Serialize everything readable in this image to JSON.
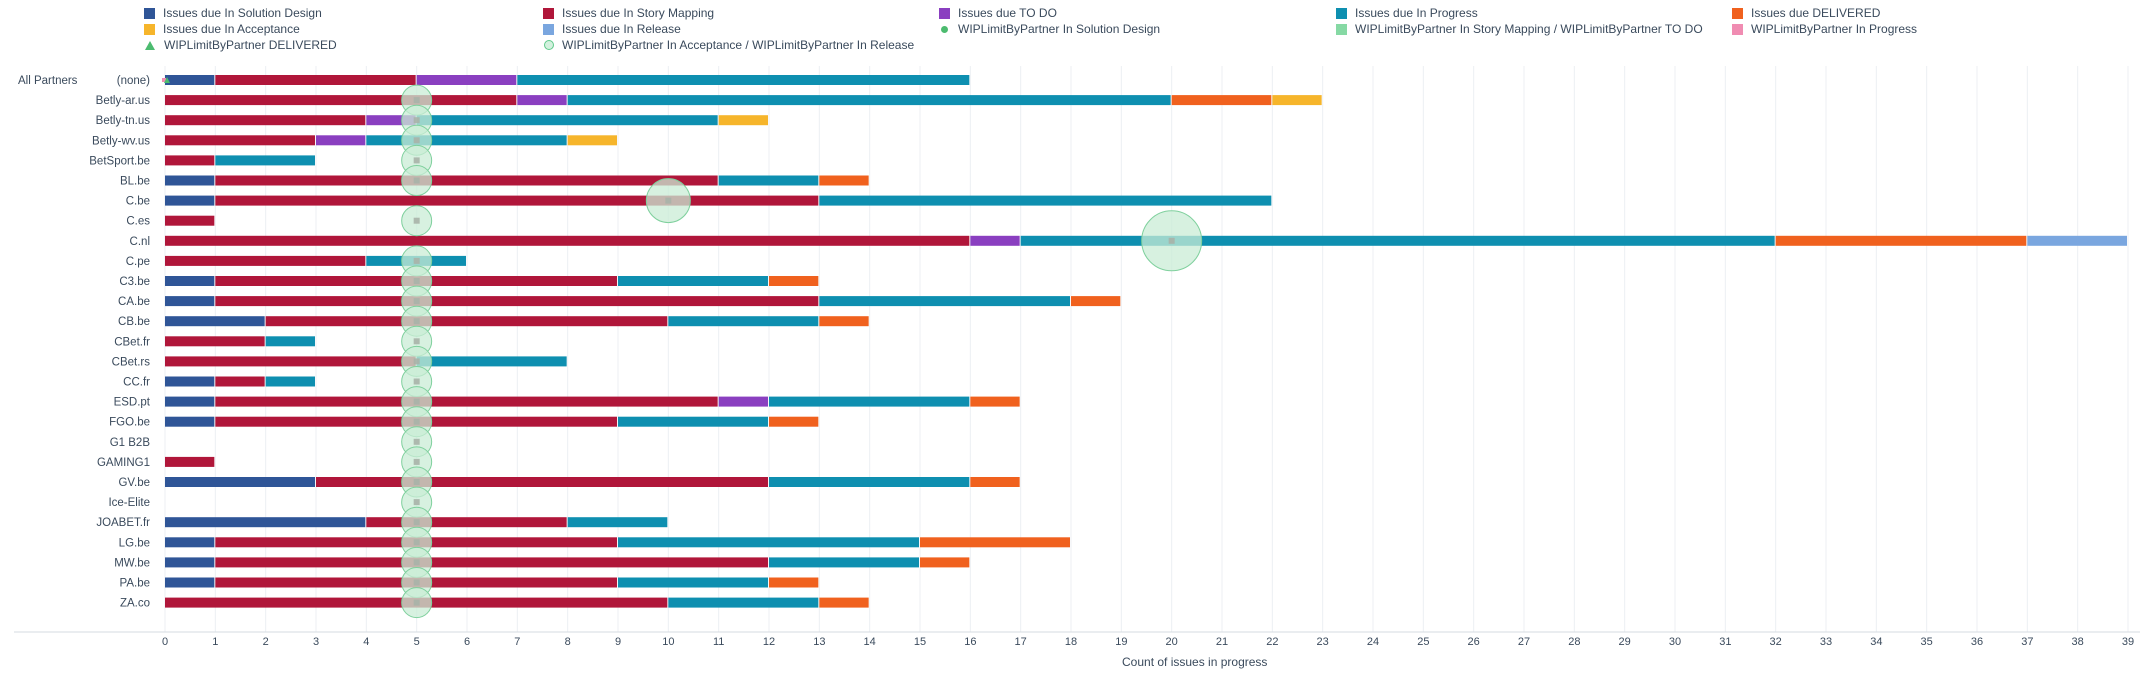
{
  "legend": [
    {
      "label": "Issues due In Solution Design",
      "color": "#2f5597",
      "shape": "square"
    },
    {
      "label": "Issues due In Story Mapping",
      "color": "#b0163a",
      "shape": "square"
    },
    {
      "label": "Issues due TO DO",
      "color": "#8a3fc0",
      "shape": "square"
    },
    {
      "label": "Issues due In Progress",
      "color": "#0e8fb0",
      "shape": "square"
    },
    {
      "label": "Issues due DELIVERED",
      "color": "#f0611e",
      "shape": "square"
    },
    {
      "label": "Issues due In Acceptance",
      "color": "#f6b52b",
      "shape": "square"
    },
    {
      "label": "Issues due In Release",
      "color": "#7aa6df",
      "shape": "square"
    },
    {
      "label": "WIPLimitByPartner In Solution Design",
      "color": "#4cbb6f",
      "shape": "dot"
    },
    {
      "label": "WIPLimitByPartner In Story Mapping / WIPLimitByPartner TO DO",
      "color": "#86d9a4",
      "shape": "square"
    },
    {
      "label": "WIPLimitByPartner In Progress",
      "color": "#f08cb2",
      "shape": "square"
    },
    {
      "label": "WIPLimitByPartner DELIVERED",
      "color": "#4cbb6f",
      "shape": "triangle"
    },
    {
      "label": "WIPLimitByPartner In Acceptance / WIPLimitByPartner In Release",
      "color": "#5fc98a",
      "shape": "ring"
    }
  ],
  "chart_data": {
    "type": "bar",
    "orientation": "horizontal",
    "stacked": true,
    "xlabel": "Count of issues in progress",
    "xlim": [
      0,
      39
    ],
    "x_ticks": [
      0,
      1,
      2,
      3,
      4,
      5,
      6,
      7,
      8,
      9,
      10,
      11,
      12,
      13,
      14,
      15,
      16,
      17,
      18,
      19,
      20,
      21,
      22,
      23,
      24,
      25,
      26,
      27,
      28,
      29,
      30,
      31,
      32,
      33,
      34,
      35,
      36,
      37,
      38,
      39
    ],
    "grid": true,
    "legend_position": "top",
    "group_label_left": "All Partners",
    "group_label_right": "(none)",
    "categories": [
      "(none)",
      "Betly-ar.us",
      "Betly-tn.us",
      "Betly-wv.us",
      "BetSport.be",
      "BL.be",
      "C.be",
      "C.es",
      "C.nl",
      "C.pe",
      "C3.be",
      "CA.be",
      "CB.be",
      "CBet.fr",
      "CBet.rs",
      "CC.fr",
      "ESD.pt",
      "FGO.be",
      "G1 B2B",
      "GAMING1",
      "GV.be",
      "Ice-Elite",
      "JOABET.fr",
      "LG.be",
      "MW.be",
      "PA.be",
      "ZA.co"
    ],
    "series": [
      {
        "name": "Issues due In Solution Design",
        "color": "#2f5597",
        "values": [
          1,
          0,
          0,
          0,
          0,
          1,
          1,
          0,
          0,
          0,
          1,
          1,
          2,
          0,
          0,
          1,
          1,
          1,
          0,
          0,
          3,
          0,
          4,
          1,
          1,
          1,
          0
        ]
      },
      {
        "name": "Issues due In Story Mapping",
        "color": "#b0163a",
        "values": [
          4,
          7,
          4,
          3,
          1,
          10,
          12,
          1,
          16,
          4,
          8,
          12,
          8,
          2,
          5,
          1,
          10,
          8,
          0,
          1,
          9,
          0,
          4,
          8,
          11,
          8,
          10
        ]
      },
      {
        "name": "Issues due TO DO",
        "color": "#8a3fc0",
        "values": [
          2,
          1,
          1,
          1,
          0,
          0,
          0,
          0,
          1,
          0,
          0,
          0,
          0,
          0,
          0,
          0,
          1,
          0,
          0,
          0,
          0,
          0,
          0,
          0,
          0,
          0,
          0
        ]
      },
      {
        "name": "Issues due In Progress",
        "color": "#0e8fb0",
        "values": [
          9,
          12,
          6,
          4,
          2,
          2,
          9,
          0,
          15,
          2,
          3,
          5,
          3,
          1,
          3,
          1,
          4,
          3,
          0,
          0,
          4,
          0,
          2,
          6,
          3,
          3,
          3
        ]
      },
      {
        "name": "Issues due DELIVERED",
        "color": "#f0611e",
        "values": [
          0,
          2,
          0,
          0,
          0,
          1,
          0,
          0,
          5,
          0,
          1,
          1,
          1,
          0,
          0,
          0,
          1,
          1,
          0,
          0,
          1,
          0,
          0,
          3,
          1,
          1,
          1
        ]
      },
      {
        "name": "Issues due In Acceptance",
        "color": "#f6b52b",
        "values": [
          0,
          1,
          1,
          1,
          0,
          0,
          0,
          0,
          0,
          0,
          0,
          0,
          0,
          0,
          0,
          0,
          0,
          0,
          0,
          0,
          0,
          0,
          0,
          0,
          0,
          0,
          0
        ]
      },
      {
        "name": "Issues due In Release",
        "color": "#7aa6df",
        "values": [
          0,
          0,
          0,
          0,
          0,
          0,
          0,
          0,
          2,
          0,
          0,
          0,
          0,
          0,
          0,
          0,
          0,
          0,
          0,
          0,
          0,
          0,
          0,
          0,
          0,
          0,
          0
        ]
      }
    ],
    "wip_limit_markers": {
      "name": "WIPLimitByPartner In Acceptance / WIPLimitByPartner In Release",
      "color": "#5fc98a",
      "values": [
        0,
        5,
        5,
        5,
        5,
        5,
        10,
        5,
        20,
        5,
        5,
        5,
        5,
        5,
        5,
        5,
        5,
        5,
        5,
        5,
        5,
        5,
        5,
        5,
        5,
        5,
        5
      ],
      "sizes": [
        0,
        1,
        1,
        1,
        1,
        1,
        1,
        1,
        2,
        1,
        1,
        1,
        1,
        1,
        1,
        1,
        1,
        1,
        1,
        1,
        1,
        1,
        1,
        1,
        1,
        1,
        1
      ]
    }
  }
}
